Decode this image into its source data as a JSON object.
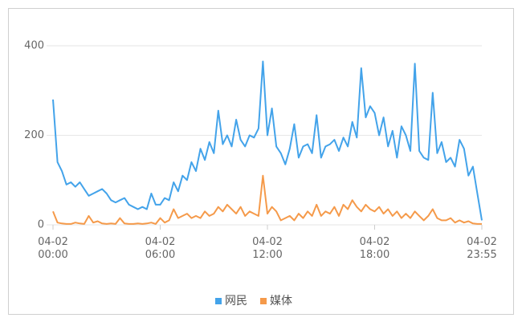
{
  "chart_data": {
    "type": "line",
    "x": [
      "04-02 00:00",
      "04-02 00:15",
      "04-02 00:30",
      "04-02 00:45",
      "04-02 01:00",
      "04-02 01:15",
      "04-02 01:30",
      "04-02 01:45",
      "04-02 02:00",
      "04-02 02:15",
      "04-02 02:30",
      "04-02 02:45",
      "04-02 03:00",
      "04-02 03:15",
      "04-02 03:30",
      "04-02 03:45",
      "04-02 04:00",
      "04-02 04:15",
      "04-02 04:30",
      "04-02 04:45",
      "04-02 05:00",
      "04-02 05:15",
      "04-02 05:30",
      "04-02 05:45",
      "04-02 06:00",
      "04-02 06:15",
      "04-02 06:30",
      "04-02 06:45",
      "04-02 07:00",
      "04-02 07:15",
      "04-02 07:30",
      "04-02 07:45",
      "04-02 08:00",
      "04-02 08:15",
      "04-02 08:30",
      "04-02 08:45",
      "04-02 09:00",
      "04-02 09:15",
      "04-02 09:30",
      "04-02 09:45",
      "04-02 10:00",
      "04-02 10:15",
      "04-02 10:30",
      "04-02 10:45",
      "04-02 11:00",
      "04-02 11:15",
      "04-02 11:30",
      "04-02 11:45",
      "04-02 12:00",
      "04-02 12:15",
      "04-02 12:30",
      "04-02 12:45",
      "04-02 13:00",
      "04-02 13:15",
      "04-02 13:30",
      "04-02 13:45",
      "04-02 14:00",
      "04-02 14:15",
      "04-02 14:30",
      "04-02 14:45",
      "04-02 15:00",
      "04-02 15:15",
      "04-02 15:30",
      "04-02 15:45",
      "04-02 16:00",
      "04-02 16:15",
      "04-02 16:30",
      "04-02 16:45",
      "04-02 17:00",
      "04-02 17:15",
      "04-02 17:30",
      "04-02 17:45",
      "04-02 18:00",
      "04-02 18:15",
      "04-02 18:30",
      "04-02 18:45",
      "04-02 19:00",
      "04-02 19:15",
      "04-02 19:30",
      "04-02 19:45",
      "04-02 20:00",
      "04-02 20:15",
      "04-02 20:30",
      "04-02 20:45",
      "04-02 21:00",
      "04-02 21:15",
      "04-02 21:30",
      "04-02 21:45",
      "04-02 22:00",
      "04-02 22:15",
      "04-02 22:30",
      "04-02 22:45",
      "04-02 23:00",
      "04-02 23:15",
      "04-02 23:30",
      "04-02 23:45",
      "04-02 23:55"
    ],
    "series": [
      {
        "name": "网民",
        "color": "#43a3ea",
        "values": [
          280,
          140,
          120,
          90,
          95,
          85,
          95,
          80,
          65,
          70,
          75,
          80,
          70,
          55,
          50,
          55,
          60,
          45,
          40,
          35,
          40,
          35,
          70,
          45,
          45,
          60,
          55,
          95,
          75,
          110,
          100,
          140,
          120,
          170,
          145,
          185,
          160,
          255,
          180,
          200,
          175,
          235,
          190,
          175,
          200,
          195,
          215,
          365,
          200,
          260,
          175,
          160,
          135,
          170,
          225,
          150,
          175,
          180,
          160,
          245,
          150,
          175,
          180,
          190,
          165,
          195,
          175,
          230,
          195,
          350,
          240,
          265,
          250,
          200,
          240,
          175,
          210,
          150,
          220,
          200,
          165,
          360,
          165,
          150,
          145,
          295,
          160,
          185,
          140,
          150,
          130,
          190,
          170,
          110,
          130,
          70,
          10
        ]
      },
      {
        "name": "媒体",
        "color": "#f59a4a",
        "values": [
          30,
          5,
          3,
          2,
          2,
          5,
          3,
          2,
          20,
          5,
          8,
          3,
          2,
          3,
          2,
          15,
          3,
          2,
          2,
          3,
          2,
          3,
          5,
          2,
          15,
          5,
          10,
          35,
          15,
          20,
          25,
          15,
          20,
          15,
          30,
          20,
          25,
          40,
          30,
          45,
          35,
          25,
          40,
          20,
          30,
          25,
          20,
          110,
          25,
          40,
          30,
          10,
          15,
          20,
          10,
          25,
          15,
          30,
          20,
          45,
          20,
          30,
          25,
          40,
          20,
          45,
          35,
          55,
          40,
          30,
          45,
          35,
          30,
          40,
          25,
          35,
          20,
          30,
          15,
          25,
          15,
          30,
          20,
          10,
          20,
          35,
          15,
          10,
          10,
          15,
          5,
          10,
          5,
          8,
          3,
          2,
          2
        ]
      }
    ],
    "xticks": [
      "04-02 00:00",
      "04-02 06:00",
      "04-02 12:00",
      "04-02 18:00",
      "04-02 23:55"
    ],
    "ylim": [
      0,
      400
    ],
    "yticks": [
      0,
      200,
      400
    ],
    "grid": true,
    "legend": "bottom"
  }
}
